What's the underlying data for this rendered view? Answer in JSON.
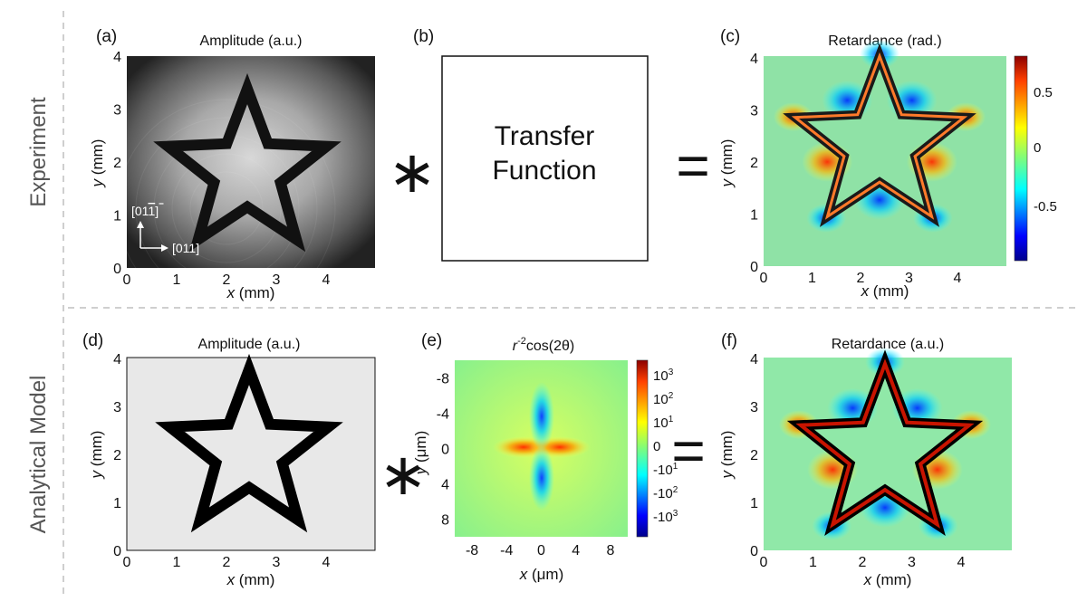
{
  "row_labels": {
    "top": "Experiment",
    "bottom": "Analytical Model"
  },
  "operators": {
    "convolve": "∗",
    "equals": "="
  },
  "transfer_box": {
    "line1": "Transfer",
    "line2": "Function"
  },
  "panels": {
    "a": {
      "label": "(a)",
      "title": "Amplitude (a.u.)",
      "xlabel_var": "x",
      "xlabel_unit": " (mm)",
      "ylabel_var": "y",
      "ylabel_unit": " (mm)",
      "xticks": [
        "0",
        "1",
        "2",
        "3",
        "4"
      ],
      "yticks": [
        "0",
        "1",
        "2",
        "3",
        "4"
      ],
      "crystal_dir_up": "[01",
      "crystal_dir_up_bar": "1",
      "crystal_dir_up_end": "]",
      "crystal_dir_right": "[011]"
    },
    "b": {
      "label": "(b)"
    },
    "c": {
      "label": "(c)",
      "title": "Retardance (rad.)",
      "xlabel_var": "x",
      "xlabel_unit": " (mm)",
      "ylabel_var": "y",
      "ylabel_unit": " (mm)",
      "xticks": [
        "0",
        "1",
        "2",
        "3",
        "4"
      ],
      "yticks": [
        "0",
        "1",
        "2",
        "3",
        "4"
      ],
      "colorbar_ticks": [
        "0.5",
        "0",
        "-0.5"
      ]
    },
    "d": {
      "label": "(d)",
      "title": "Amplitude (a.u.)",
      "xlabel_var": "x",
      "xlabel_unit": " (mm)",
      "ylabel_var": "y",
      "ylabel_unit": " (mm)",
      "xticks": [
        "0",
        "1",
        "2",
        "3",
        "4"
      ],
      "yticks": [
        "0",
        "1",
        "2",
        "3",
        "4"
      ]
    },
    "e": {
      "label": "(e)",
      "title_r": "r",
      "title_exp": "-2",
      "title_rest": "cos(2θ)",
      "xlabel_var": "x",
      "xlabel_unit": " (μm)",
      "ylabel_var": "y",
      "ylabel_unit": " (μm)",
      "xticks": [
        "-8",
        "-4",
        "0",
        "4",
        "8"
      ],
      "yticks": [
        "-8",
        "-4",
        "0",
        "4",
        "8"
      ],
      "colorbar_ticks": [
        {
          "base": "10",
          "exp": "3"
        },
        {
          "base": "10",
          "exp": "2"
        },
        {
          "base": "10",
          "exp": "1"
        },
        {
          "base": "0",
          "exp": ""
        },
        {
          "base": "-10",
          "exp": "1"
        },
        {
          "base": "-10",
          "exp": "2"
        },
        {
          "base": "-10",
          "exp": "3"
        }
      ]
    },
    "f": {
      "label": "(f)",
      "title": "Retardance (a.u.)",
      "xlabel_var": "x",
      "xlabel_unit": " (mm)",
      "ylabel_var": "y",
      "ylabel_unit": " (mm)",
      "xticks": [
        "0",
        "1",
        "2",
        "3",
        "4"
      ],
      "yticks": [
        "0",
        "1",
        "2",
        "3",
        "4"
      ]
    }
  },
  "colors": {
    "jet_red": "#8b0000",
    "jet_orange": "#ff8000",
    "jet_yellow": "#ffff00",
    "jet_green": "#7dfd7d",
    "jet_cyan": "#00ffff",
    "jet_blue": "#0000ff",
    "jet_navy": "#00008b",
    "retard_bg": "#8fe2a6",
    "model_bg": "#e8e8e8",
    "divider": "#bfbfbf"
  }
}
